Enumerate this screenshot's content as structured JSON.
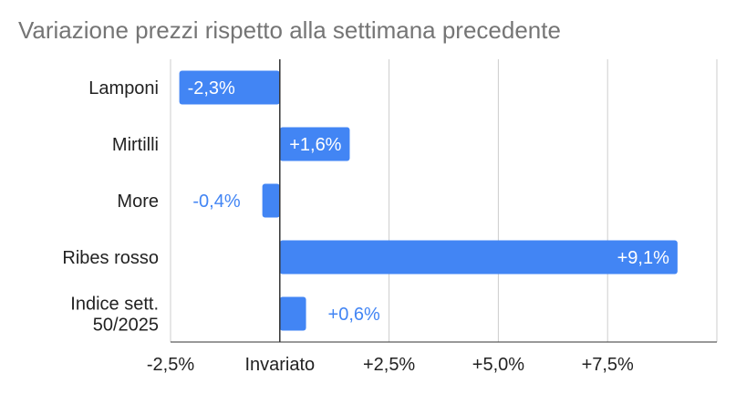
{
  "chart_data": {
    "type": "bar",
    "orientation": "horizontal",
    "title": "Variazione prezzi rispetto alla settimana precedente",
    "categories": [
      "Lamponi",
      "Mirtilli",
      "More",
      "Ribes rosso",
      "Indice sett.\n50/2025"
    ],
    "values": [
      -2.3,
      1.6,
      -0.4,
      9.1,
      0.6
    ],
    "data_labels": [
      "-2,3%",
      "+1,6%",
      "-0,4%",
      "+9,1%",
      "+0,6%"
    ],
    "x_ticks": [
      -2.5,
      0,
      2.5,
      5.0,
      7.5
    ],
    "x_tick_labels": [
      "-2,5%",
      "Invariato",
      "+2,5%",
      "+5,0%",
      "+7,5%"
    ],
    "xlim": [
      -2.5,
      10
    ],
    "grid": true,
    "legend": "none",
    "bar_color": "#4285f4",
    "title_color": "#757575"
  }
}
